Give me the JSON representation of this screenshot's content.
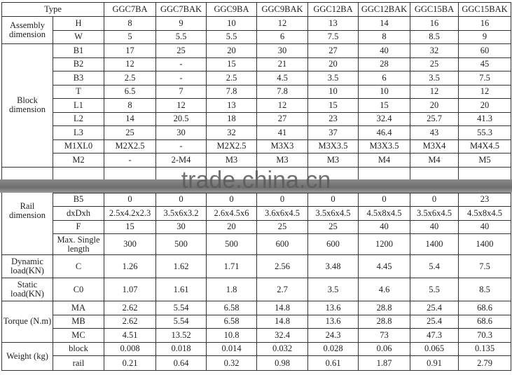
{
  "header": {
    "type_label": "Type",
    "models": [
      "GGC7BA",
      "GGC7BAK",
      "GGC9BA",
      "GGC9BAK",
      "GGC12BA",
      "GGC12BAK",
      "GGC15BA",
      "GGC15BAK"
    ]
  },
  "groups": [
    {
      "label": "Assembly dimension",
      "rows": [
        {
          "param": "H",
          "values": [
            "8",
            "9",
            "10",
            "12",
            "13",
            "14",
            "16",
            "16"
          ]
        },
        {
          "param": "W",
          "values": [
            "5",
            "5.5",
            "5.5",
            "6",
            "7.5",
            "8",
            "8.5",
            "9"
          ]
        }
      ]
    },
    {
      "label": "Block dimension",
      "rows": [
        {
          "param": "B1",
          "values": [
            "17",
            "25",
            "20",
            "30",
            "27",
            "40",
            "32",
            "60"
          ]
        },
        {
          "param": "B2",
          "values": [
            "12",
            "-",
            "15",
            "21",
            "20",
            "28",
            "25",
            "45"
          ]
        },
        {
          "param": "B3",
          "values": [
            "2.5",
            "-",
            "2.5",
            "4.5",
            "3.5",
            "6",
            "3.5",
            "7.5"
          ]
        },
        {
          "param": "T",
          "values": [
            "6.5",
            "7",
            "7.8",
            "7.8",
            "10",
            "10",
            "12",
            "12"
          ]
        },
        {
          "param": "L1",
          "values": [
            "8",
            "12",
            "13",
            "12",
            "15",
            "15",
            "20",
            "20"
          ]
        },
        {
          "param": "L2",
          "values": [
            "14",
            "20.5",
            "18",
            "27",
            "23",
            "32.4",
            "25.7",
            "41.3"
          ]
        },
        {
          "param": "L3",
          "values": [
            "25",
            "30",
            "32",
            "41",
            "37",
            "46.4",
            "43",
            "55.3"
          ]
        },
        {
          "param": "M1XL0",
          "values": [
            "M2X2.5",
            "-",
            "M2X2.5",
            "M3X3",
            "M3X3.5",
            "M3X3.5",
            "M3X4",
            "M4X4.5"
          ]
        },
        {
          "param": "M2",
          "values": [
            "-",
            "2-M4",
            "M3",
            "M3",
            "M3",
            "M4",
            "M4",
            "M5"
          ]
        }
      ]
    },
    {
      "label": "Rail dimension",
      "gap": true,
      "rows": [
        {
          "param": "B5",
          "values": [
            "0",
            "0",
            "0",
            "0",
            "0",
            "0",
            "0",
            "23"
          ]
        },
        {
          "param": "dxDxh",
          "values": [
            "2.5x4.2x2.3",
            "3.5x6x3.2",
            "2.6x4.5x6",
            "3.6x6x4.5",
            "3.5x6x4.5",
            "4.5x8x4.5",
            "3.5x6x4.5",
            "4.5x8x4.5"
          ]
        },
        {
          "param": "F",
          "values": [
            "15",
            "30",
            "20",
            "25",
            "25",
            "40",
            "40",
            "40"
          ]
        },
        {
          "param": "Max. Single length",
          "values": [
            "300",
            "500",
            "500",
            "600",
            "600",
            "1200",
            "1400",
            "1400"
          ],
          "tall": true
        }
      ]
    },
    {
      "label": "Dynamic load(KN)",
      "rows": [
        {
          "param": "C",
          "values": [
            "1.26",
            "1.62",
            "1.71",
            "2.56",
            "3.48",
            "4.45",
            "5.4",
            "7.5"
          ],
          "h": 33
        }
      ]
    },
    {
      "label": "Static load(KN)",
      "rows": [
        {
          "param": "C0",
          "values": [
            "1.07",
            "1.61",
            "1.8",
            "2.7",
            "3.5",
            "4.6",
            "5.5",
            "8.5"
          ],
          "h": 33
        }
      ]
    },
    {
      "label": "Torque (N.m)",
      "rows": [
        {
          "param": "MA",
          "values": [
            "2.62",
            "5.54",
            "6.58",
            "14.8",
            "13.6",
            "28.8",
            "25.4",
            "68.6"
          ]
        },
        {
          "param": "MB",
          "values": [
            "2.62",
            "5.54",
            "6.58",
            "14.8",
            "13.6",
            "28.8",
            "25.4",
            "68.6"
          ]
        },
        {
          "param": "MC",
          "values": [
            "4.51",
            "13.52",
            "10.8",
            "32.4",
            "24.3",
            "73",
            "47.3",
            "70.3"
          ]
        }
      ]
    },
    {
      "label": "Weight (kg)",
      "rows": [
        {
          "param": "block",
          "values": [
            "0.008",
            "0.018",
            "0.014",
            "0.032",
            "0.028",
            "0.06",
            "0.065",
            "0.135"
          ]
        },
        {
          "param": "rail",
          "values": [
            "0.21",
            "0.64",
            "0.32",
            "0.98",
            "0.61",
            "1.87",
            "0.91",
            "2.79"
          ],
          "h": 21
        }
      ]
    }
  ],
  "watermark": "trade.china.cn"
}
